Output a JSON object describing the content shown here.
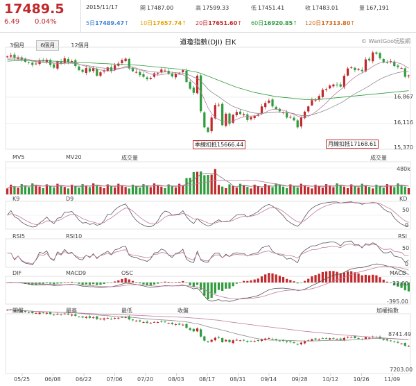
{
  "header": {
    "last_price": "17489.5",
    "change": "6.49",
    "change_pct": "0.04%",
    "date": "2015/11/17",
    "open_label": "開",
    "open": "17487.00",
    "high_label": "高",
    "high": "17599.33",
    "low_label": "低",
    "low": "17451.41",
    "close_label": "收",
    "close": "17483.01",
    "volume_label": "量",
    "volume": "167,191",
    "ma": [
      {
        "label": "5日",
        "value": "17489.47",
        "arrow": "↑",
        "color": "#3a7fd5"
      },
      {
        "label": "10日",
        "value": "17657.74",
        "arrow": "↑",
        "color": "#e5a100"
      },
      {
        "label": "20日",
        "value": "17651.60",
        "arrow": "↑",
        "color": "#c0282b"
      },
      {
        "label": "60日",
        "value": "16920.85",
        "arrow": "↑",
        "color": "#2e9b3c"
      },
      {
        "label": "120日",
        "value": "17313.80",
        "arrow": "↑",
        "color": "#d06a1a"
      }
    ]
  },
  "tabs": [
    "3個月",
    "6個月",
    "12個月"
  ],
  "active_tab": 1,
  "chart_title": "道瓊指數(DJI) 日K",
  "watermark": "© WantGoo玩股網",
  "colors": {
    "up": "#c0282b",
    "down": "#2e9b3c",
    "line1": "#888888",
    "line2": "#c07aa0"
  },
  "chart_data": [
    {
      "type": "candlestick",
      "title": "道瓊指數(DJI) 日K",
      "y_ticks": [
        "16,867",
        "16,116",
        "15,370"
      ],
      "ylim": [
        15370,
        18300
      ],
      "annotations": [
        {
          "text": "季線扣抵15666.44"
        },
        {
          "text": "月線扣抵17168.61"
        }
      ],
      "close": [
        18035,
        18070,
        17990,
        18010,
        17940,
        17880,
        17850,
        17790,
        17830,
        17920,
        17900,
        17940,
        17790,
        17710,
        17890,
        17820,
        17980,
        17870,
        17900,
        17760,
        17640,
        17590,
        17700,
        17600,
        17700,
        17480,
        17580,
        17640,
        17720,
        17610,
        17780,
        17830,
        17930,
        17970,
        17690,
        17610,
        17590,
        17500,
        17450,
        17380,
        17420,
        17550,
        17560,
        17660,
        17630,
        17530,
        17460,
        17540,
        17560,
        17640,
        17300,
        17110,
        16990,
        17480,
        16460,
        16000,
        15870,
        16280,
        16640,
        16650,
        16060,
        16390,
        16100,
        16360,
        16440,
        16380,
        16380,
        16210,
        16290,
        16330,
        16370,
        16600,
        16700,
        16770,
        16600,
        16520,
        16460,
        16430,
        16280,
        16300,
        16200,
        16000,
        16280,
        16450,
        16600,
        16780,
        16780,
        16900,
        17080,
        17100,
        17200,
        17230,
        17210,
        17170,
        17480,
        17690,
        17720,
        17640,
        17680,
        17610,
        17950,
        17920,
        18150,
        18110,
        17980,
        17860,
        17860,
        17900,
        17760,
        17730,
        17700,
        17450,
        17490
      ],
      "ma_lines": [
        {
          "name": "",
          "color": "#888888",
          "values": [
            17950,
            17960,
            17960,
            17960,
            17950,
            17940,
            17920,
            17900,
            17880,
            17870,
            17860,
            17860,
            17850,
            17840,
            17840,
            17830,
            17840,
            17840,
            17840,
            17830,
            17810,
            17790,
            17780,
            17760,
            17750,
            17730,
            17710,
            17700,
            17690,
            17680,
            17680,
            17690,
            17700,
            17710,
            17710,
            17690,
            17680,
            17660,
            17640,
            17620,
            17600,
            17590,
            17580,
            17580,
            17590,
            17590,
            17580,
            17570,
            17560,
            17560,
            17530,
            17490,
            17440,
            17410,
            17330,
            17220,
            17100,
            17010,
            16940,
            16880,
            16800,
            16730,
            16660,
            16600,
            16560,
            16520,
            16490,
            16460,
            16430,
            16410,
            16400,
            16400,
            16410,
            16420,
            16430,
            16440,
            16440,
            16430,
            16420,
            16410,
            16390,
            16360,
            16340,
            16330,
            16340,
            16360,
            16390,
            16420,
            16460,
            16500,
            16550,
            16600,
            16650,
            16700,
            16760,
            16830,
            16900,
            16960,
            17020,
            17070,
            17130,
            17190,
            17260,
            17320,
            17380,
            17430,
            17470,
            17510,
            17540,
            17570,
            17590,
            17590,
            17600
          ]
        },
        {
          "name": "",
          "color": "#c07aa0",
          "values": [
            17980,
            17990,
            18000,
            18000,
            17990,
            17970,
            17950,
            17920,
            17900,
            17890,
            17880,
            17880,
            17870,
            17850,
            17840,
            17830,
            17840,
            17850,
            17860,
            17850,
            17820,
            17780,
            17750,
            17720,
            17700,
            17680,
            17650,
            17630,
            17620,
            17620,
            17640,
            17670,
            17710,
            17750,
            17760,
            17730,
            17700,
            17660,
            17610,
            17570,
            17530,
            17510,
            17500,
            17510,
            17530,
            17540,
            17540,
            17530,
            17520,
            17510,
            17460,
            17380,
            17280,
            17200,
            17020,
            16800,
            16560,
            16400,
            16290,
            16220,
            16180,
            16170,
            16160,
            16180,
            16230,
            16270,
            16300,
            16320,
            16320,
            16330,
            16340,
            16380,
            16430,
            16480,
            16510,
            16520,
            16510,
            16490,
            16450,
            16410,
            16370,
            16320,
            16290,
            16280,
            16310,
            16370,
            16440,
            16520,
            16610,
            16700,
            16810,
            16910,
            17000,
            17080,
            17170,
            17270,
            17360,
            17440,
            17510,
            17560,
            17620,
            17680,
            17750,
            17810,
            17850,
            17870,
            17880,
            17880,
            17870,
            17850,
            17820,
            17760,
            17700
          ]
        },
        {
          "name": "",
          "color": "#2e9b3c",
          "values": [
            17900,
            17905,
            17910,
            17915,
            17920,
            17920,
            17920,
            17920,
            17920,
            17920,
            17915,
            17910,
            17905,
            17900,
            17895,
            17890,
            17885,
            17880,
            17875,
            17870,
            17865,
            17860,
            17855,
            17850,
            17845,
            17840,
            17835,
            17830,
            17825,
            17820,
            17815,
            17810,
            17805,
            17800,
            17795,
            17790,
            17785,
            17780,
            17770,
            17760,
            17750,
            17740,
            17730,
            17720,
            17710,
            17700,
            17690,
            17680,
            17670,
            17660,
            17640,
            17620,
            17600,
            17580,
            17550,
            17510,
            17470,
            17430,
            17390,
            17350,
            17310,
            17270,
            17230,
            17190,
            17150,
            17120,
            17090,
            17060,
            17030,
            17000,
            16980,
            16960,
            16940,
            16920,
            16900,
            16880,
            16870,
            16860,
            16850,
            16840,
            16830,
            16820,
            16810,
            16800,
            16800,
            16800,
            16800,
            16800,
            16810,
            16820,
            16830,
            16840,
            16850,
            16860,
            16870,
            16880,
            16890,
            16900,
            16910,
            16920,
            16930,
            16940,
            16950,
            16960,
            16970,
            16980,
            16990,
            17000,
            17010,
            17020,
            17030,
            17040,
            17050
          ]
        }
      ]
    },
    {
      "type": "bar",
      "title": "成交量",
      "legend": [
        "MV5",
        "MV20",
        "成交量"
      ],
      "y_ticks": [
        "480k"
      ],
      "ylim": [
        0,
        520
      ]
    },
    {
      "type": "line",
      "legend": [
        "K9",
        "D9",
        "KD"
      ],
      "ylim": [
        0,
        100
      ],
      "y_ticks": [
        "50",
        "0"
      ]
    },
    {
      "type": "line",
      "legend": [
        "RSI5",
        "RSI10",
        "RSI"
      ],
      "ylim": [
        0,
        100
      ],
      "y_ticks": [
        "50",
        "0"
      ]
    },
    {
      "type": "bar",
      "legend": [
        "DIF",
        "MACD9",
        "OSC",
        "MACD"
      ],
      "y_ticks": [
        "22.60",
        "-395.00"
      ],
      "ylim": [
        -420,
        120
      ]
    },
    {
      "type": "candlestick",
      "legend": [
        "開盤",
        "最高",
        "最低",
        "收盤",
        "加權指數"
      ],
      "y_ticks": [
        "8741.49",
        "7203.00"
      ],
      "ylim": [
        7100,
        9100
      ],
      "x_ticks": [
        "05/25",
        "06/08",
        "06/22",
        "07/06",
        "07/20",
        "08/03",
        "08/17",
        "08/31",
        "09/14",
        "09/28",
        "10/12",
        "10/26",
        "11/09"
      ]
    }
  ]
}
